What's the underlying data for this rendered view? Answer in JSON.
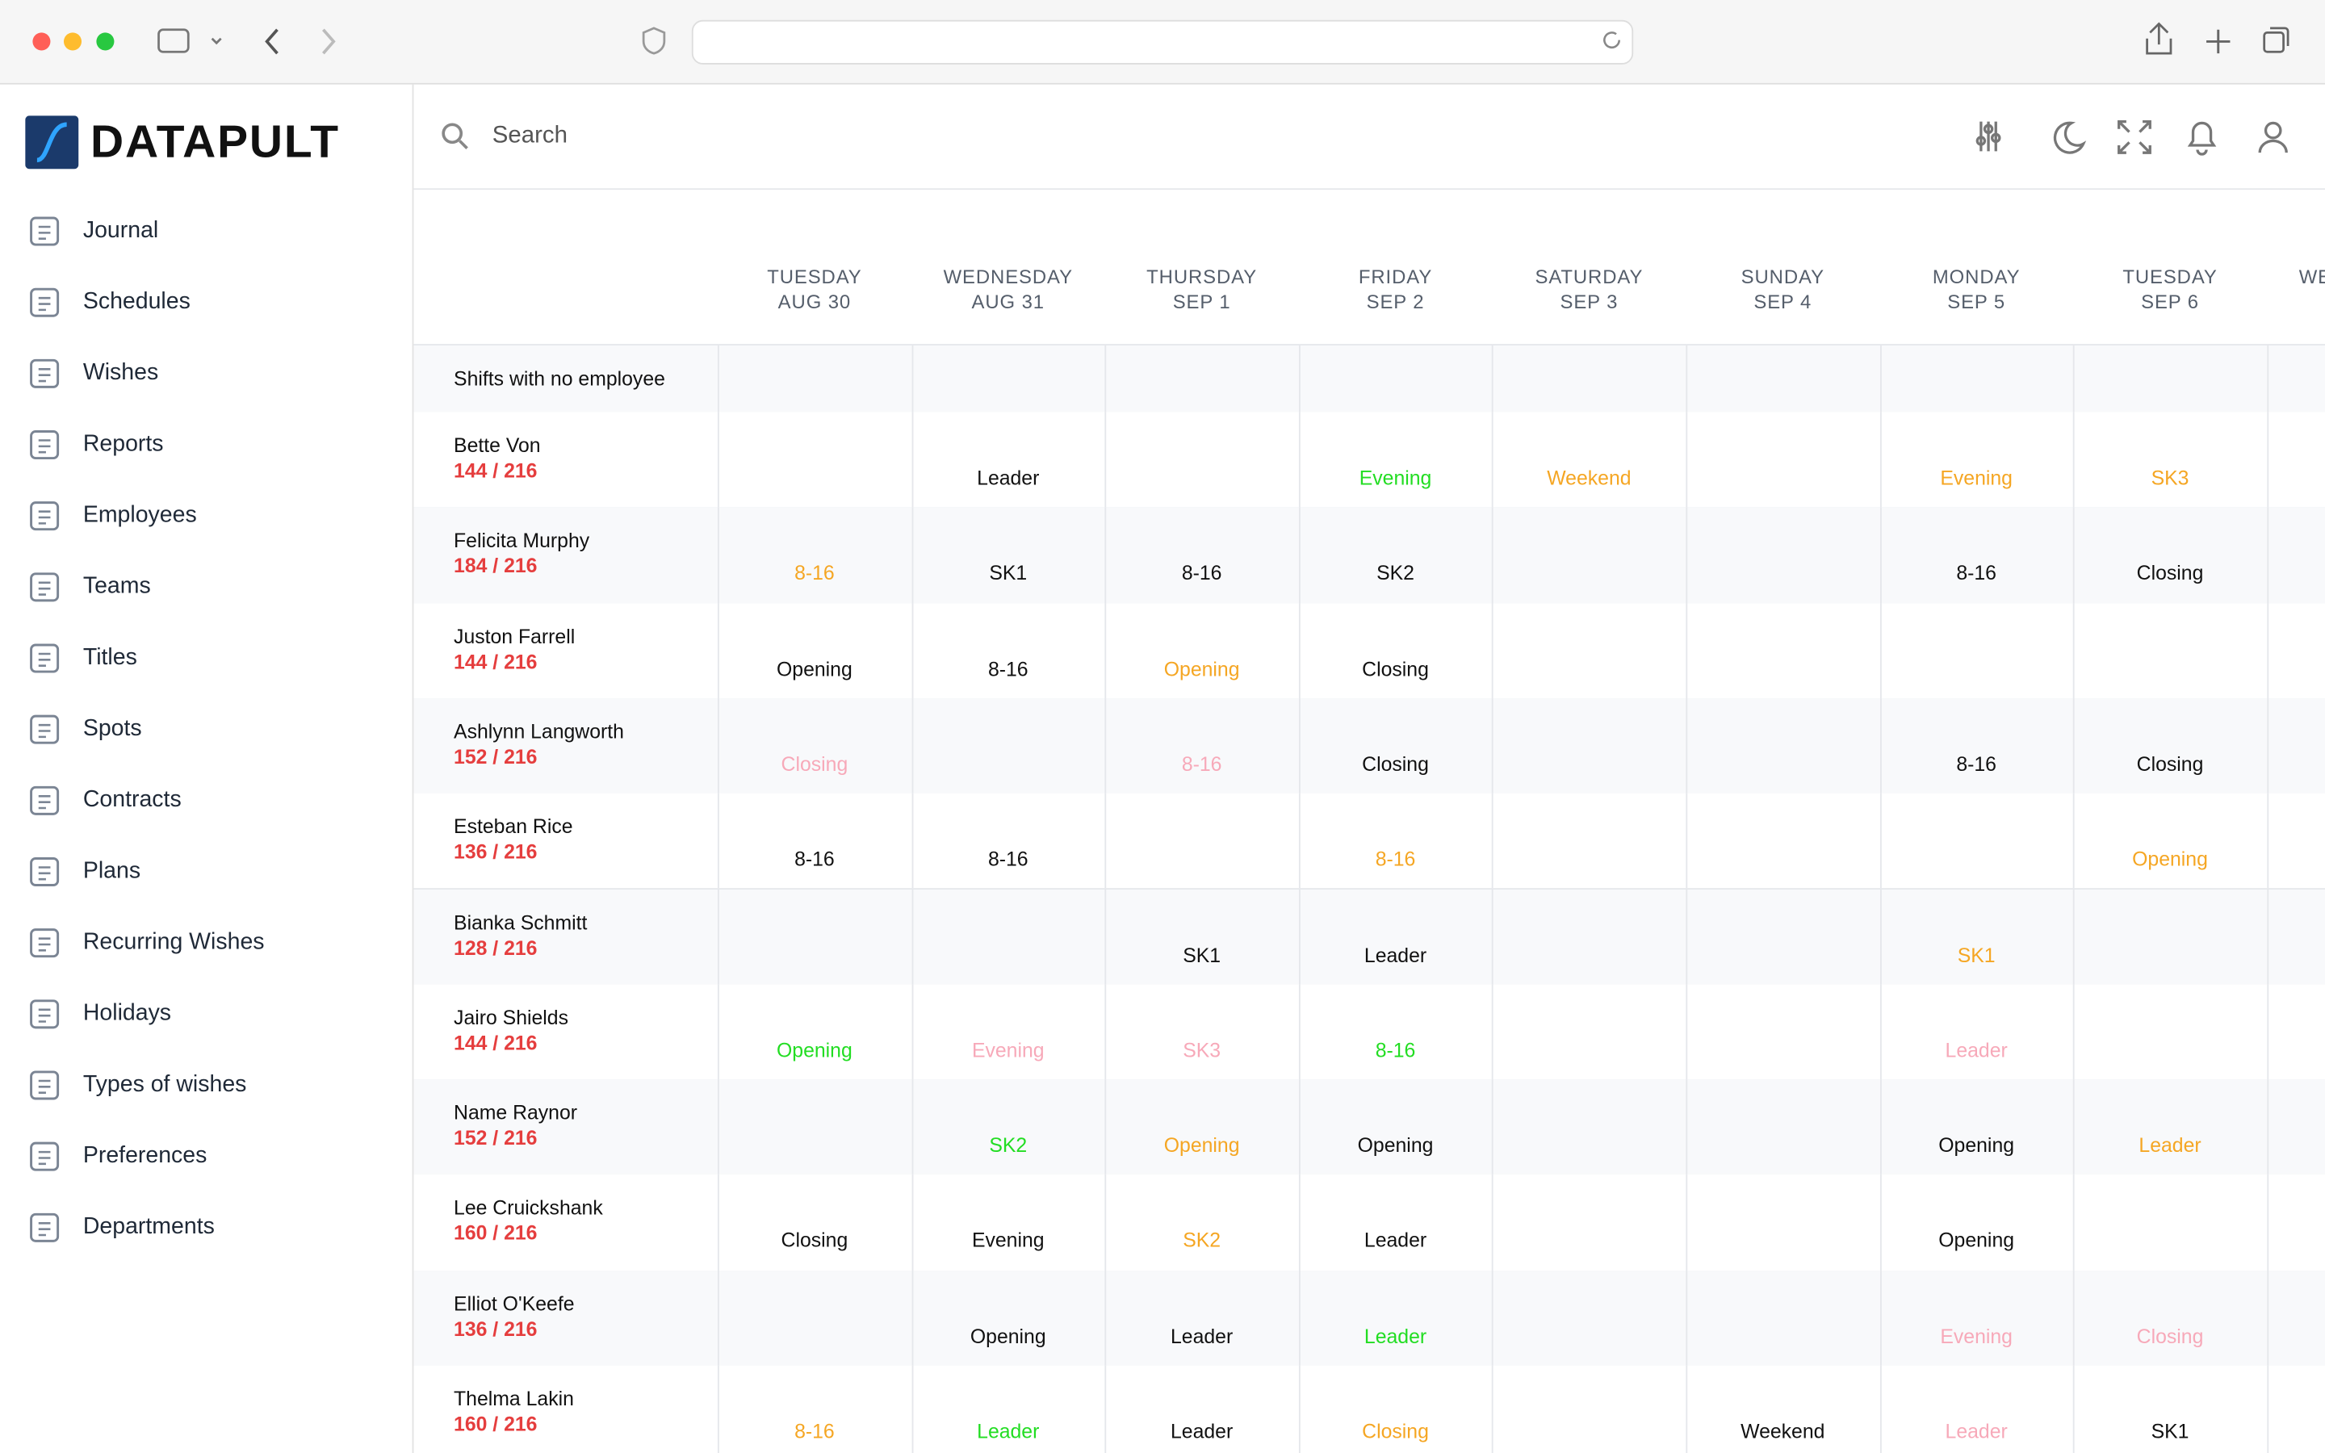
{
  "sidebar": {
    "brand": "DATAPULT",
    "nav": [
      "Journal",
      "Schedules",
      "Wishes",
      "Reports",
      "Employees",
      "Teams",
      "Titles",
      "Spots",
      "Contracts",
      "Plans",
      "Recurring Wishes",
      "Holidays",
      "Types of wishes",
      "Preferences",
      "Departments"
    ]
  },
  "topbar": {
    "search_placeholder": "Search"
  },
  "schedule": {
    "days": [
      {
        "weekday": "TUESDAY",
        "date": "AUG 30"
      },
      {
        "weekday": "WEDNESDAY",
        "date": "AUG 31"
      },
      {
        "weekday": "THURSDAY",
        "date": "SEP 1"
      },
      {
        "weekday": "FRIDAY",
        "date": "SEP 2"
      },
      {
        "weekday": "SATURDAY",
        "date": "SEP 3"
      },
      {
        "weekday": "SUNDAY",
        "date": "SEP 4"
      },
      {
        "weekday": "MONDAY",
        "date": "SEP 5"
      },
      {
        "weekday": "TUESDAY",
        "date": "SEP 6"
      },
      {
        "weekday": "WEDNESDAY",
        "date": null
      }
    ],
    "unassigned_label": "Shifts with no employee",
    "rows": [
      {
        "name": "Bette Von",
        "hours": "144 / 216",
        "cells": [
          null,
          {
            "text": "Leader",
            "color": "#111111"
          },
          null,
          {
            "text": "Evening",
            "color": "#22dd22"
          },
          {
            "text": "Weekend",
            "color": "#f5a623"
          },
          null,
          {
            "text": "Evening",
            "color": "#f5a623"
          },
          {
            "text": "SK3",
            "color": "#f5a623"
          }
        ]
      },
      {
        "name": "Felicita Murphy",
        "hours": "184 / 216",
        "cells": [
          {
            "text": "8-16",
            "color": "#f5a623"
          },
          {
            "text": "SK1",
            "color": "#111111"
          },
          {
            "text": "8-16",
            "color": "#111111"
          },
          {
            "text": "SK2",
            "color": "#111111"
          },
          null,
          null,
          {
            "text": "8-16",
            "color": "#111111"
          },
          {
            "text": "Closing",
            "color": "#111111"
          }
        ]
      },
      {
        "name": "Juston Farrell",
        "hours": "144 / 216",
        "cells": [
          {
            "text": "Opening",
            "color": "#111111"
          },
          {
            "text": "8-16",
            "color": "#111111"
          },
          {
            "text": "Opening",
            "color": "#f5a623"
          },
          {
            "text": "Closing",
            "color": "#111111"
          },
          null,
          null,
          null,
          null
        ]
      },
      {
        "name": "Ashlynn Langworth",
        "hours": "152 / 216",
        "cells": [
          {
            "text": "Closing",
            "color": "#f7a9b9"
          },
          null,
          {
            "text": "8-16",
            "color": "#f7a9b9"
          },
          {
            "text": "Closing",
            "color": "#111111"
          },
          null,
          null,
          {
            "text": "8-16",
            "color": "#111111"
          },
          {
            "text": "Closing",
            "color": "#111111"
          }
        ]
      },
      {
        "name": "Esteban Rice",
        "hours": "136 / 216",
        "cells": [
          {
            "text": "8-16",
            "color": "#111111"
          },
          {
            "text": "8-16",
            "color": "#111111"
          },
          null,
          {
            "text": "8-16",
            "color": "#f5a623"
          },
          null,
          null,
          null,
          {
            "text": "Opening",
            "color": "#f5a623"
          }
        ]
      },
      {
        "name": "Bianka Schmitt",
        "hours": "128 / 216",
        "cells": [
          null,
          null,
          {
            "text": "SK1",
            "color": "#111111"
          },
          {
            "text": "Leader",
            "color": "#111111"
          },
          null,
          null,
          {
            "text": "SK1",
            "color": "#f5a623"
          },
          null
        ]
      },
      {
        "name": "Jairo Shields",
        "hours": "144 / 216",
        "cells": [
          {
            "text": "Opening",
            "color": "#22dd22"
          },
          {
            "text": "Evening",
            "color": "#f7a9b9"
          },
          {
            "text": "SK3",
            "color": "#f7a9b9"
          },
          {
            "text": "8-16",
            "color": "#22dd22"
          },
          null,
          null,
          {
            "text": "Leader",
            "color": "#f7a9b9"
          },
          null
        ]
      },
      {
        "name": "Name Raynor",
        "hours": "152 / 216",
        "cells": [
          null,
          {
            "text": "SK2",
            "color": "#22dd22"
          },
          {
            "text": "Opening",
            "color": "#f5a623"
          },
          {
            "text": "Opening",
            "color": "#111111"
          },
          null,
          null,
          {
            "text": "Opening",
            "color": "#111111"
          },
          {
            "text": "Leader",
            "color": "#f5a623"
          }
        ]
      },
      {
        "name": "Lee Cruickshank",
        "hours": "160 / 216",
        "cells": [
          {
            "text": "Closing",
            "color": "#111111"
          },
          {
            "text": "Evening",
            "color": "#111111"
          },
          {
            "text": "SK2",
            "color": "#f5a623"
          },
          {
            "text": "Leader",
            "color": "#111111"
          },
          null,
          null,
          {
            "text": "Opening",
            "color": "#111111"
          },
          null
        ]
      },
      {
        "name": "Elliot O'Keefe",
        "hours": "136 / 216",
        "cells": [
          null,
          {
            "text": "Opening",
            "color": "#111111"
          },
          {
            "text": "Leader",
            "color": "#111111"
          },
          {
            "text": "Leader",
            "color": "#22dd22"
          },
          null,
          null,
          {
            "text": "Evening",
            "color": "#f7a9b9"
          },
          {
            "text": "Closing",
            "color": "#f7a9b9"
          }
        ]
      },
      {
        "name": "Thelma Lakin",
        "hours": "160 / 216",
        "cells": [
          {
            "text": "8-16",
            "color": "#f5a623"
          },
          {
            "text": "Leader",
            "color": "#22dd22"
          },
          {
            "text": "Leader",
            "color": "#111111"
          },
          {
            "text": "Closing",
            "color": "#f5a623"
          },
          null,
          {
            "text": "Weekend",
            "color": "#111111"
          },
          {
            "text": "Leader",
            "color": "#f7a9b9"
          },
          {
            "text": "SK1",
            "color": "#111111"
          }
        ]
      }
    ]
  }
}
